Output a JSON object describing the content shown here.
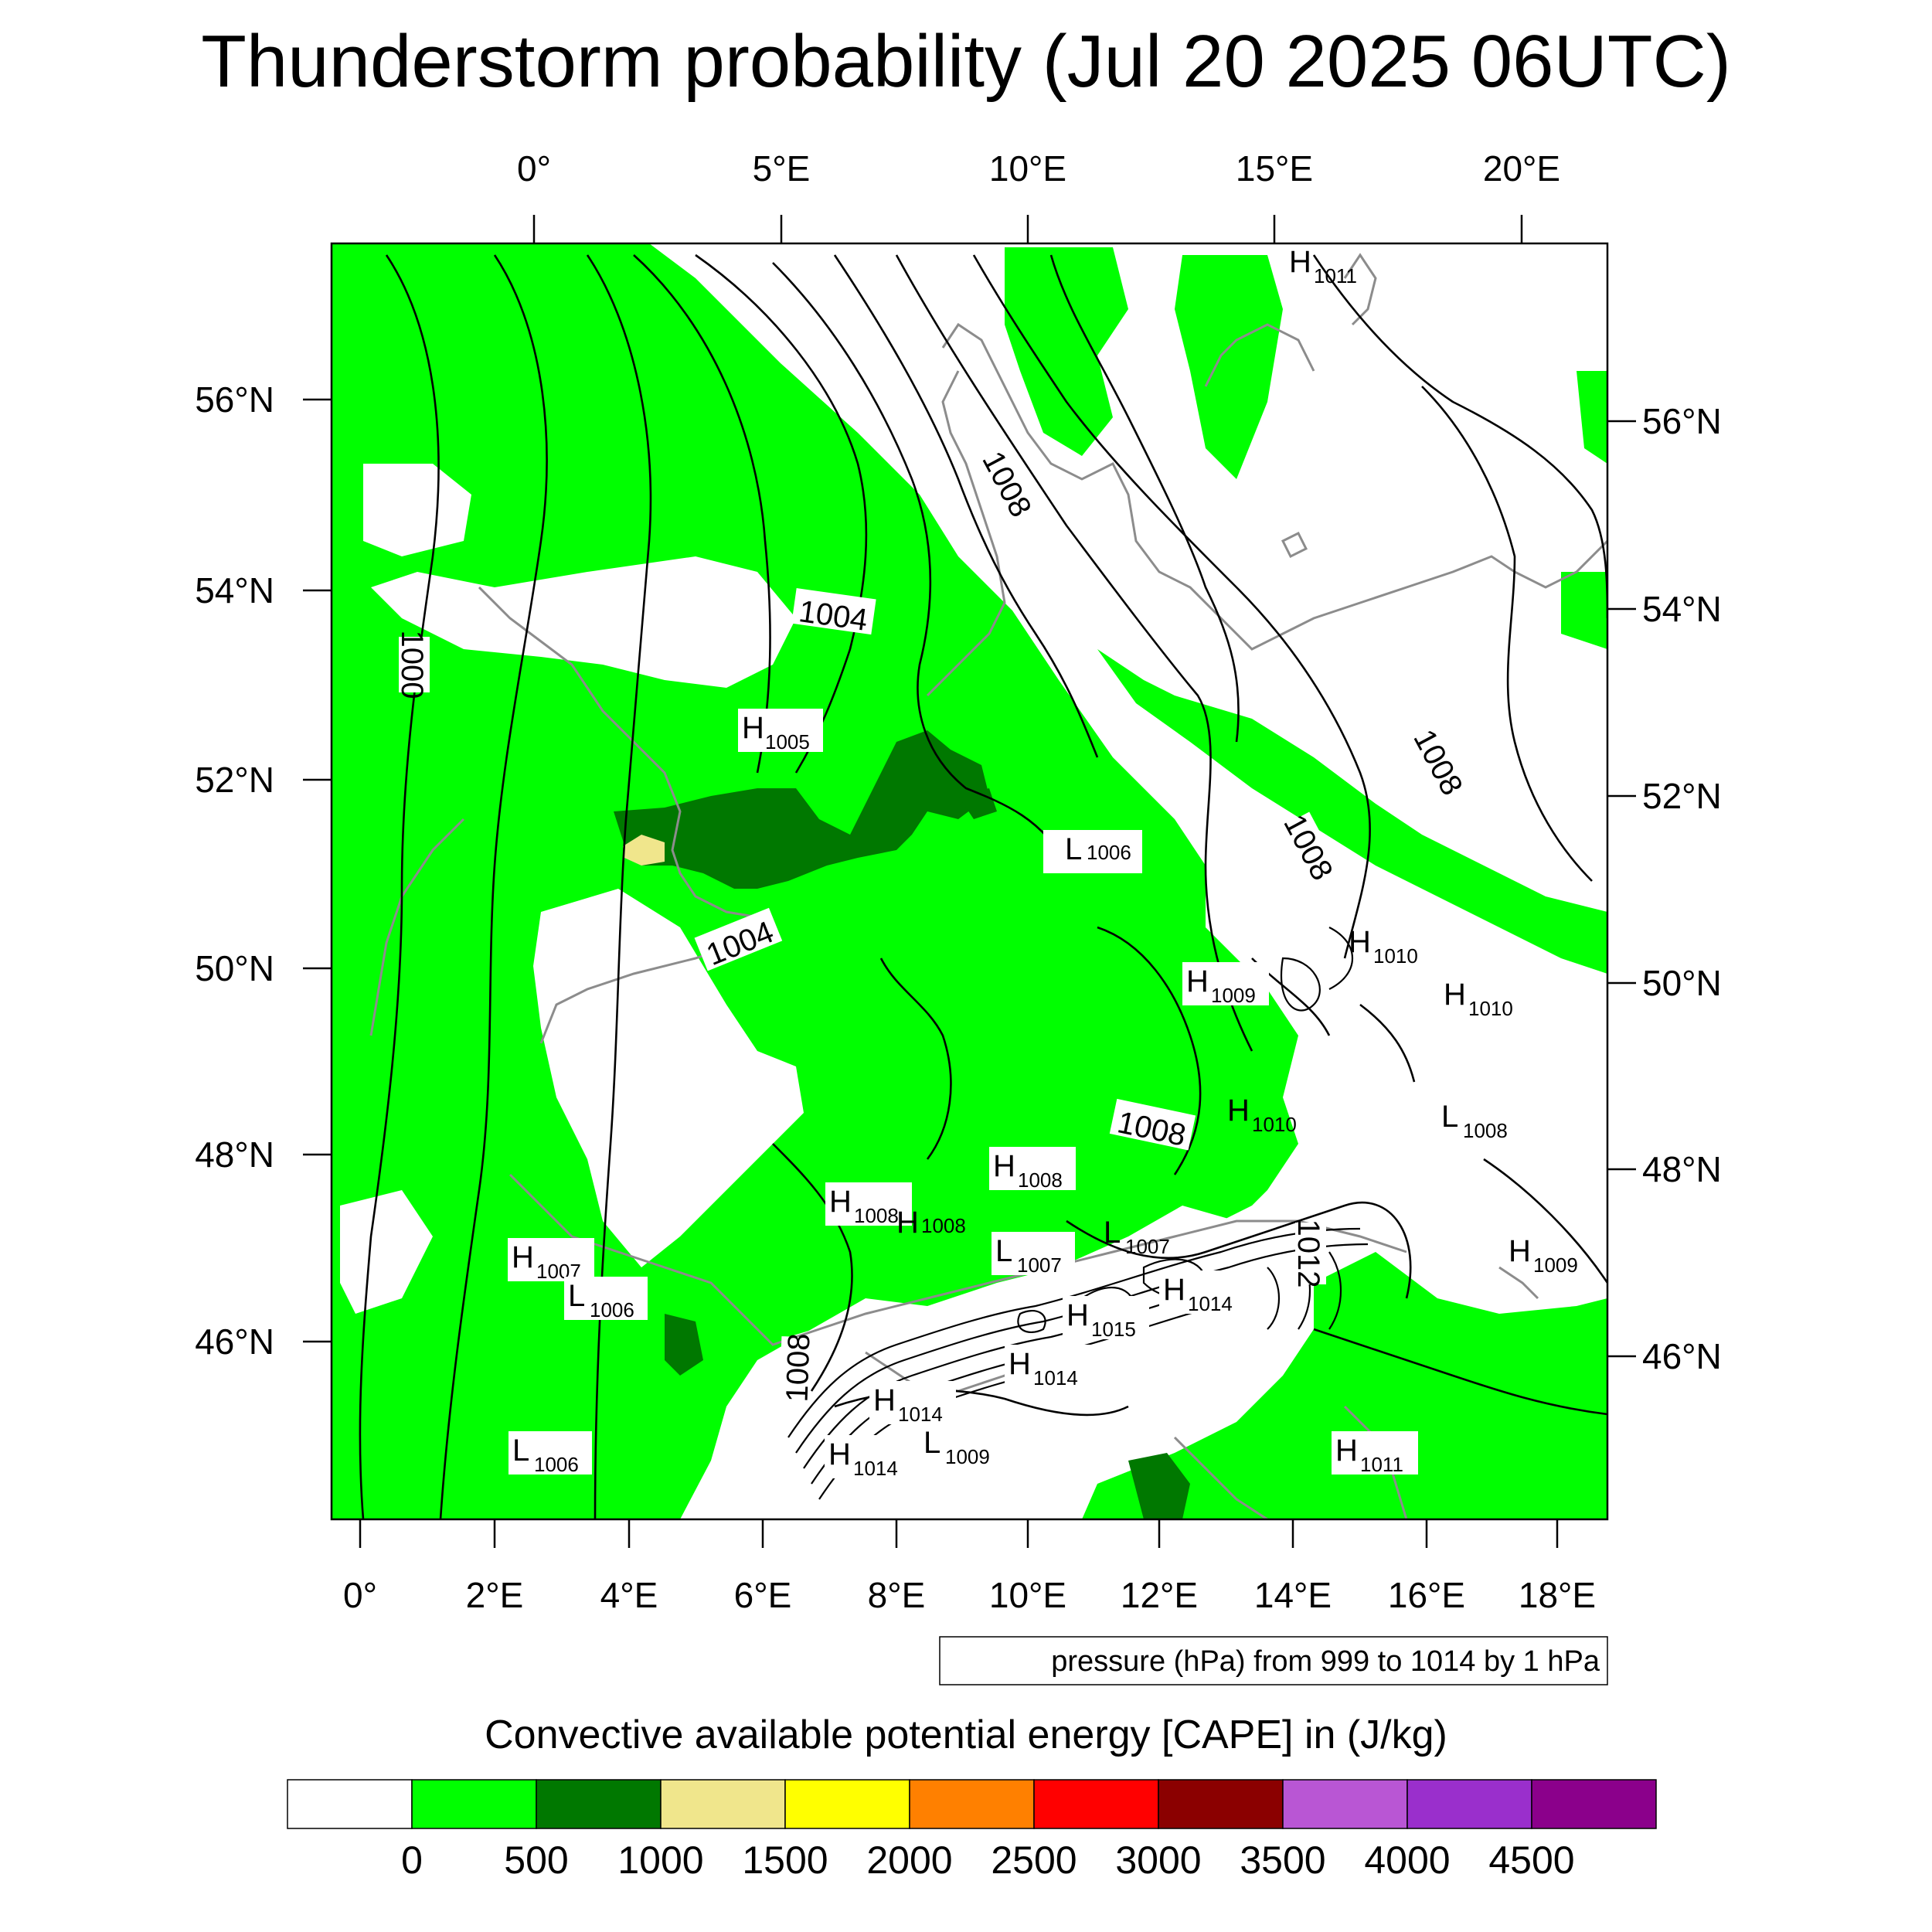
{
  "title": "Thunderstorm probability (Jul 20 2025 06UTC)",
  "pressure_note": "pressure (hPa) from 999 to 1014 by 1 hPa",
  "colorbar": {
    "title": "Convective available potential energy [CAPE] in (J/kg)",
    "colors": [
      "#ffffff",
      "#00ff00",
      "#007800",
      "#f0e68c",
      "#ffff00",
      "#ff8000",
      "#ff0000",
      "#8b0000",
      "#b956d4",
      "#9a2fcc",
      "#8b008b"
    ],
    "labels": [
      "0",
      "500",
      "1000",
      "1500",
      "2000",
      "2500",
      "3000",
      "3500",
      "4000",
      "4500"
    ]
  },
  "top_axis_labels": [
    "0°",
    "5°E",
    "10°E",
    "15°E",
    "20°E"
  ],
  "bottom_axis_labels": [
    "0°",
    "2°E",
    "4°E",
    "6°E",
    "8°E",
    "10°E",
    "12°E",
    "14°E",
    "16°E",
    "18°E"
  ],
  "left_axis_labels": [
    "56°N",
    "54°N",
    "52°N",
    "50°N",
    "48°N",
    "46°N"
  ],
  "right_axis_labels": [
    "56°N",
    "54°N",
    "52°N",
    "50°N",
    "48°N",
    "46°N"
  ],
  "isobar_labels": [
    "1000",
    "1004",
    "1004",
    "1008",
    "1008",
    "1008",
    "1008",
    "1008",
    "1012"
  ],
  "pressure_centers": [
    {
      "letter": "H",
      "value": "1011"
    },
    {
      "letter": "H",
      "value": "1005"
    },
    {
      "letter": "L",
      "value": "1006"
    },
    {
      "letter": "H",
      "value": "1010"
    },
    {
      "letter": "H",
      "value": "1010"
    },
    {
      "letter": "H",
      "value": "1009"
    },
    {
      "letter": "H",
      "value": "1010"
    },
    {
      "letter": "L",
      "value": "1008"
    },
    {
      "letter": "H",
      "value": "1008"
    },
    {
      "letter": "H",
      "value": "1008"
    },
    {
      "letter": "H",
      "value": "1008"
    },
    {
      "letter": "L",
      "value": "1007"
    },
    {
      "letter": "L",
      "value": "1007"
    },
    {
      "letter": "H",
      "value": "1014"
    },
    {
      "letter": "H",
      "value": "1015"
    },
    {
      "letter": "H",
      "value": "1007"
    },
    {
      "letter": "L",
      "value": "1006"
    },
    {
      "letter": "H",
      "value": "1009"
    },
    {
      "letter": "H",
      "value": "1014"
    },
    {
      "letter": "H",
      "value": "1014"
    },
    {
      "letter": "L",
      "value": "1009"
    },
    {
      "letter": "H",
      "value": "1014"
    },
    {
      "letter": "L",
      "value": "1006"
    },
    {
      "letter": "H",
      "value": "1011"
    }
  ]
}
